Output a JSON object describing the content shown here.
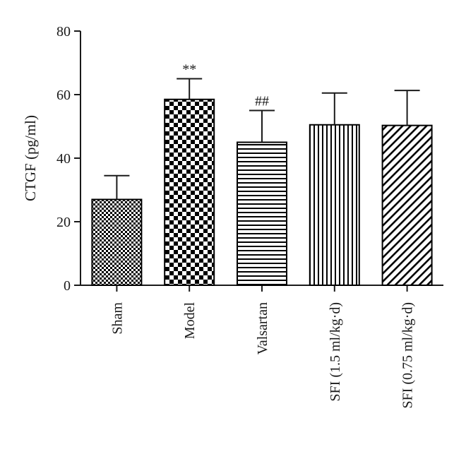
{
  "chart_data": {
    "type": "bar",
    "title": "",
    "xlabel": "",
    "ylabel": "CTGF (pg/ml)",
    "ylim": [
      0,
      80
    ],
    "yticks": [
      "0",
      "20",
      "40",
      "60",
      "80"
    ],
    "categories": [
      "Sham",
      "Model",
      "Valsartan",
      "SFI (1.5 ml/kg·d)",
      "SFI (0.75 ml/kg·d)"
    ],
    "values": [
      27,
      58.5,
      45,
      50.5,
      50.3
    ],
    "error_upper": [
      7.5,
      6.5,
      10,
      10,
      11
    ],
    "annotations": [
      "",
      "**",
      "##",
      "",
      ""
    ],
    "patterns": [
      "small-checker",
      "large-checker",
      "horizontal-lines",
      "vertical-lines",
      "diagonal-lines"
    ],
    "grid": false,
    "legend": "none",
    "bar_color": "#000000"
  }
}
